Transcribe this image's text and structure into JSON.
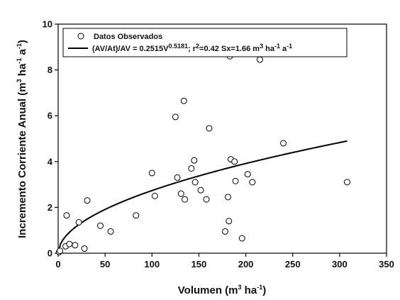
{
  "chart_data": {
    "type": "scatter",
    "xlabel": {
      "main": "Volumen (m",
      "sup1": "3",
      "mid1": " ha",
      "sup2": "-1",
      "end": ")"
    },
    "ylabel": {
      "main": "Incremento Corriente Anual (m",
      "sup1": "3",
      "mid1": " ha",
      "sup2": "-1",
      "mid2": " a",
      "sup3": "-1",
      "end": ")"
    },
    "xlim": [
      0,
      350
    ],
    "ylim": [
      0,
      10
    ],
    "x_ticks": [
      0,
      50,
      100,
      150,
      200,
      250,
      300,
      350
    ],
    "y_ticks": [
      0,
      2,
      4,
      6,
      8,
      10
    ],
    "legend": {
      "position": "top-left",
      "scatter_label": "Datos Observados",
      "fit_label": {
        "p1": "(AV/At)/AV = 0.2515V",
        "sup1": "0.5181",
        "p2": "; r",
        "sup2": "2",
        "p3": "=0.42 Sx=1.66 m",
        "sup3": "3",
        "p4": " ha",
        "sup4": "-1",
        "p5": " a",
        "sup5": "-1"
      }
    },
    "series": [
      {
        "name": "Datos Observados",
        "kind": "scatter",
        "points": [
          [
            1,
            0.05
          ],
          [
            2,
            0.1
          ],
          [
            8,
            0.3
          ],
          [
            9,
            1.65
          ],
          [
            12,
            0.4
          ],
          [
            18,
            0.35
          ],
          [
            22,
            1.35
          ],
          [
            28,
            0.2
          ],
          [
            31,
            2.3
          ],
          [
            45,
            1.2
          ],
          [
            56,
            0.95
          ],
          [
            83,
            1.65
          ],
          [
            100,
            3.5
          ],
          [
            103,
            2.5
          ],
          [
            125,
            5.95
          ],
          [
            127,
            3.3
          ],
          [
            131,
            2.6
          ],
          [
            134,
            6.65
          ],
          [
            135,
            2.35
          ],
          [
            142,
            3.7
          ],
          [
            145,
            4.05
          ],
          [
            146,
            3.1
          ],
          [
            152,
            2.75
          ],
          [
            158,
            2.35
          ],
          [
            161,
            5.45
          ],
          [
            178,
            0.95
          ],
          [
            181,
            2.45
          ],
          [
            182,
            1.4
          ],
          [
            183,
            8.6
          ],
          [
            184,
            4.1
          ],
          [
            188,
            4.0
          ],
          [
            189,
            3.15
          ],
          [
            196,
            0.65
          ],
          [
            202,
            3.45
          ],
          [
            207,
            3.1
          ],
          [
            215,
            8.45
          ],
          [
            240,
            4.8
          ],
          [
            308,
            3.1
          ]
        ]
      },
      {
        "name": "(AV/At)/AV = 0.2515V^0.5181",
        "kind": "line",
        "coef": 0.2515,
        "exponent": 0.5181,
        "x_range": [
          0,
          308
        ]
      }
    ]
  }
}
